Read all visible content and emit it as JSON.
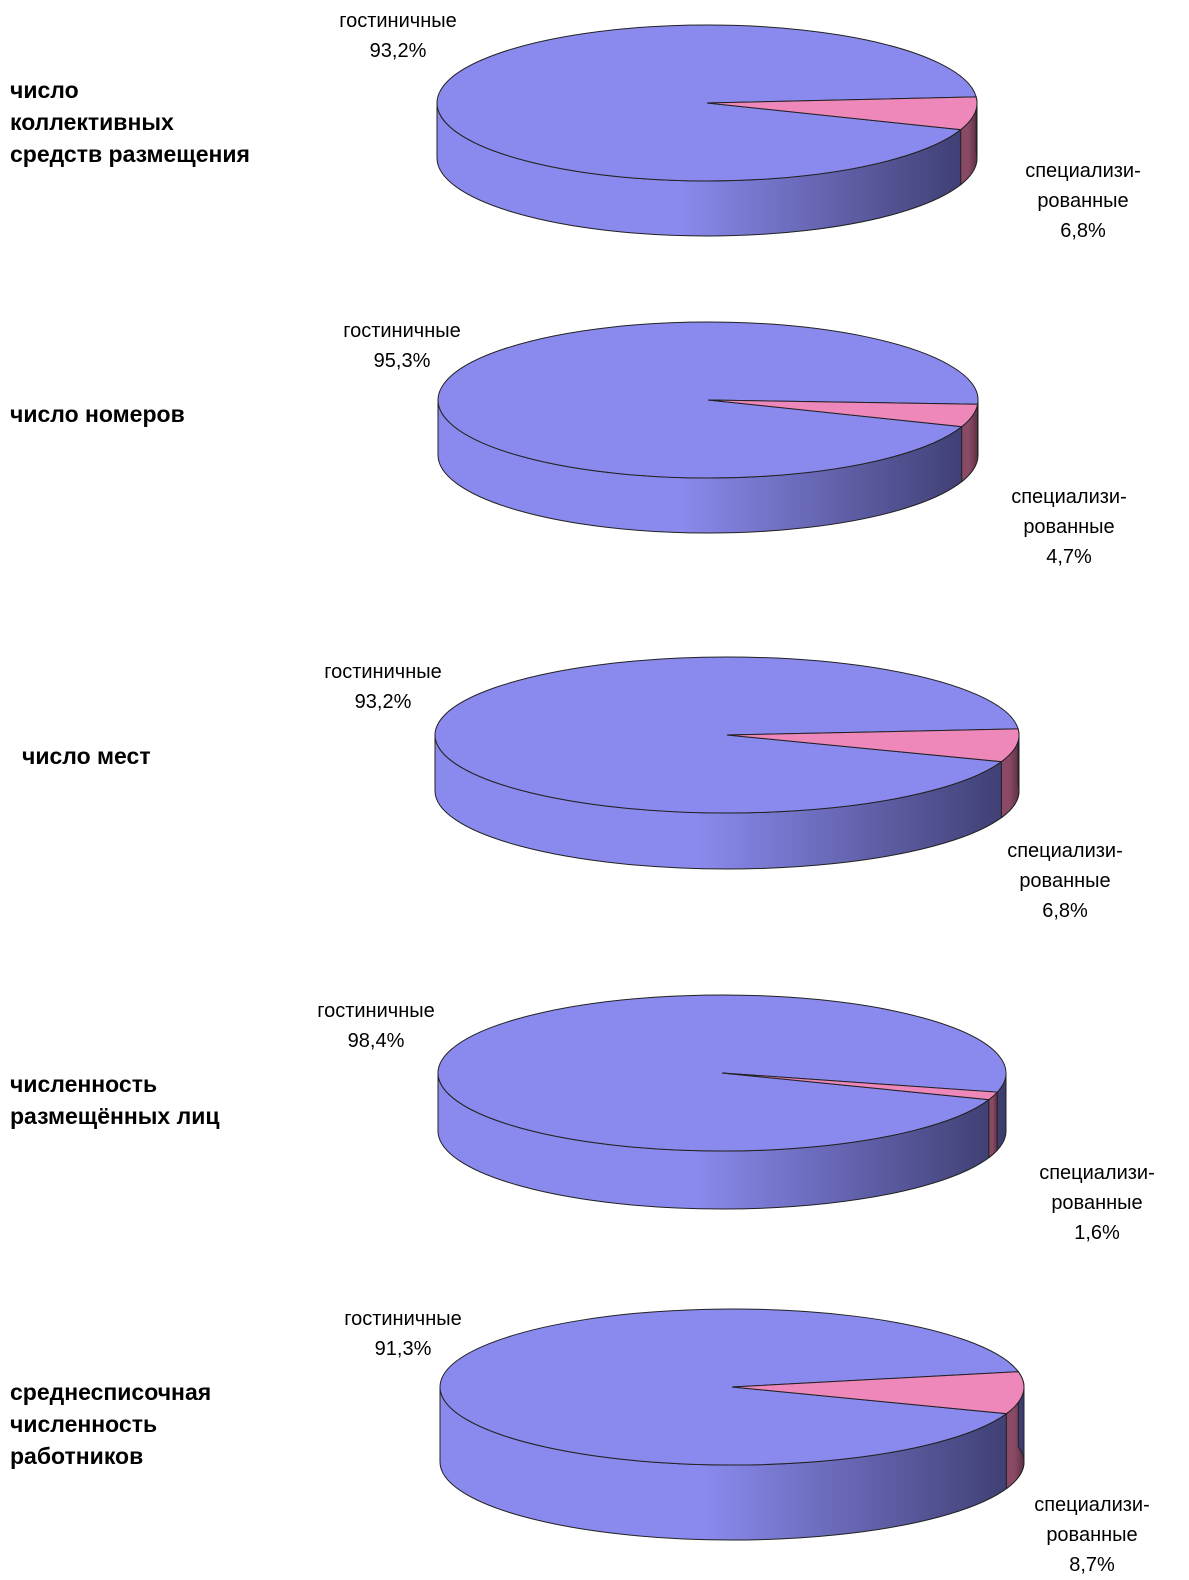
{
  "colors": {
    "main_top": "#8a8aee",
    "main_side_light": "#8a8aee",
    "main_side_dark": "#3c3c6e",
    "spec_top": "#ee88bb",
    "spec_side_light": "#8a4a66",
    "spec_side_dark": "#5e3044"
  },
  "chart_data": [
    {
      "type": "pie",
      "title": "число\nколлективных\nсредств размещения",
      "slices": [
        {
          "label_line1": "гостиничные",
          "label_line2": "",
          "value_text": "93,2%",
          "value": 93.2
        },
        {
          "label_line1": "специализи-",
          "label_line2": "рованные",
          "value_text": "6,8%",
          "value": 6.8
        }
      ]
    },
    {
      "type": "pie",
      "title": "число номеров",
      "slices": [
        {
          "label_line1": "гостиничные",
          "label_line2": "",
          "value_text": "95,3%",
          "value": 95.3
        },
        {
          "label_line1": "специализи-",
          "label_line2": "рованные",
          "value_text": "4,7%",
          "value": 4.7
        }
      ]
    },
    {
      "type": "pie",
      "title": "число мест",
      "slices": [
        {
          "label_line1": "гостиничные",
          "label_line2": "",
          "value_text": "93,2%",
          "value": 93.2
        },
        {
          "label_line1": "специализи-",
          "label_line2": "рованные",
          "value_text": "6,8%",
          "value": 6.8
        }
      ]
    },
    {
      "type": "pie",
      "title": "численность\nразмещённых лиц",
      "slices": [
        {
          "label_line1": "гостиничные",
          "label_line2": "",
          "value_text": "98,4%",
          "value": 98.4
        },
        {
          "label_line1": "специализи-",
          "label_line2": "рованные",
          "value_text": "1,6%",
          "value": 1.6
        }
      ]
    },
    {
      "type": "pie",
      "title": "среднесписочная\nчисленность\nработников",
      "slices": [
        {
          "label_line1": "гостиничные",
          "label_line2": "",
          "value_text": "91,3%",
          "value": 91.3
        },
        {
          "label_line1": "специализи-",
          "label_line2": "рованные",
          "value_text": "8,7%",
          "value": 8.7
        }
      ]
    }
  ]
}
